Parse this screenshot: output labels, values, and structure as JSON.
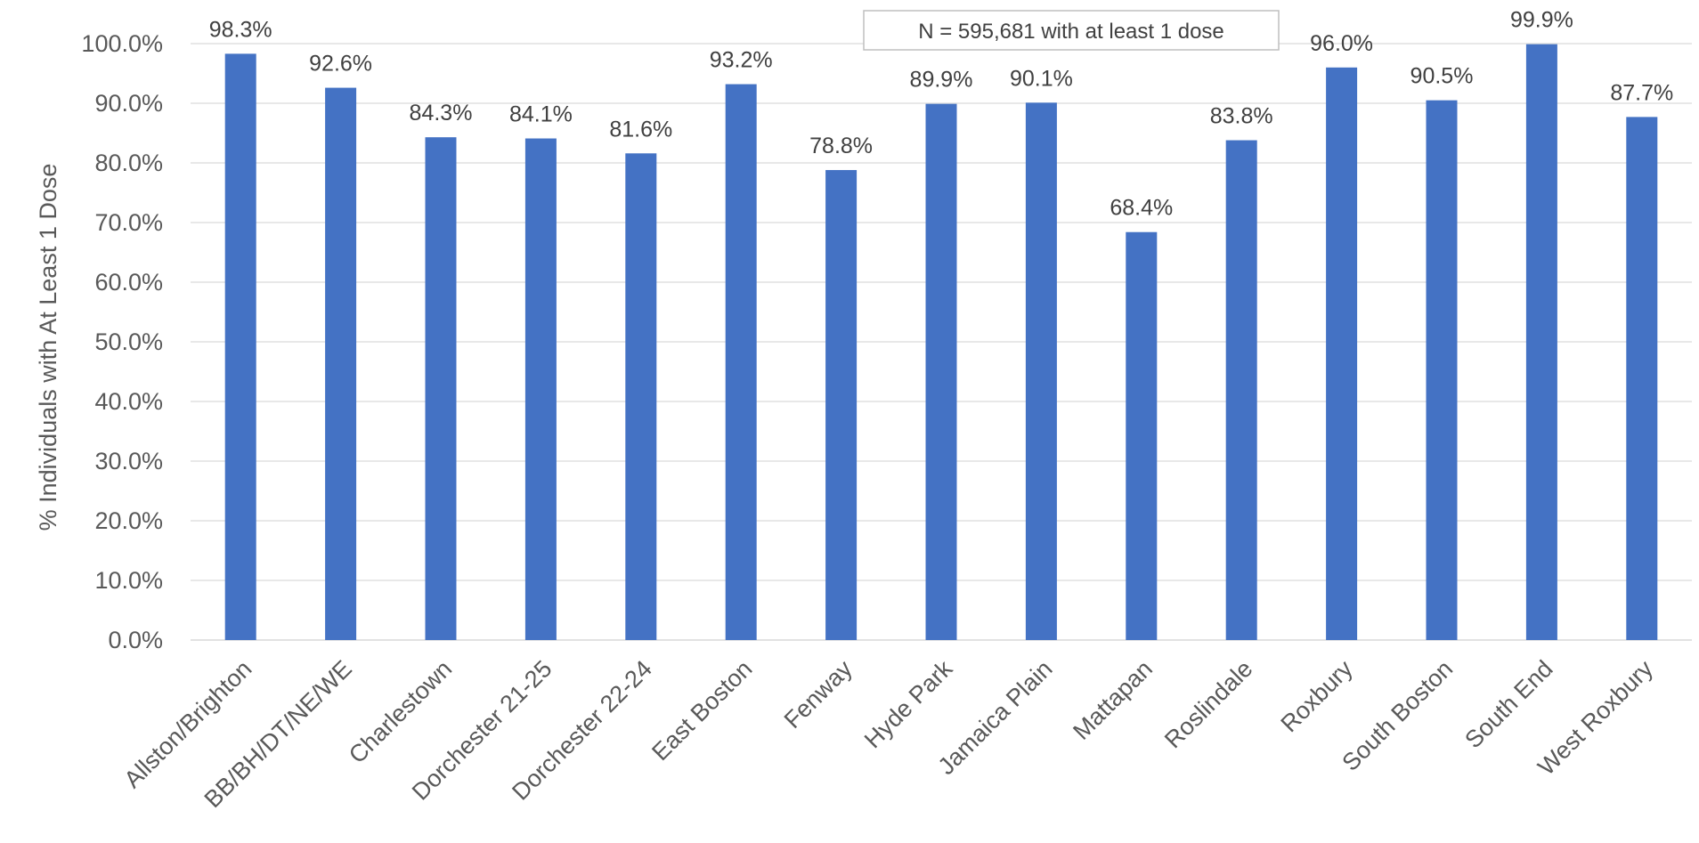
{
  "chart_data": {
    "type": "bar",
    "title": "",
    "xlabel": "",
    "ylabel": "% Individuals with At Least 1 Dose",
    "ylim": [
      0,
      100
    ],
    "yticks": [
      0,
      10,
      20,
      30,
      40,
      50,
      60,
      70,
      80,
      90,
      100
    ],
    "ytick_labels": [
      "0.0%",
      "10.0%",
      "20.0%",
      "30.0%",
      "40.0%",
      "50.0%",
      "60.0%",
      "70.0%",
      "80.0%",
      "90.0%",
      "100.0%"
    ],
    "grid": true,
    "legend": "none",
    "bar_color": "#4472c4",
    "categories": [
      "Allston/Brighton",
      "BB/BH/DT/NE/WE",
      "Charlestown",
      "Dorchester 21-25",
      "Dorchester 22-24",
      "East Boston",
      "Fenway",
      "Hyde Park",
      "Jamaica Plain",
      "Mattapan",
      "Roslindale",
      "Roxbury",
      "South Boston",
      "South End",
      "West Roxbury"
    ],
    "values": [
      98.3,
      92.6,
      84.3,
      84.1,
      81.6,
      93.2,
      78.8,
      89.9,
      90.1,
      68.4,
      83.8,
      96.0,
      90.5,
      99.9,
      87.7
    ],
    "data_labels": [
      "98.3%",
      "92.6%",
      "84.3%",
      "84.1%",
      "81.6%",
      "93.2%",
      "78.8%",
      "89.9%",
      "90.1%",
      "68.4%",
      "83.8%",
      "96.0%",
      "90.5%",
      "99.9%",
      "87.7%"
    ],
    "annotation": "N =  595,681 with at least 1 dose"
  }
}
